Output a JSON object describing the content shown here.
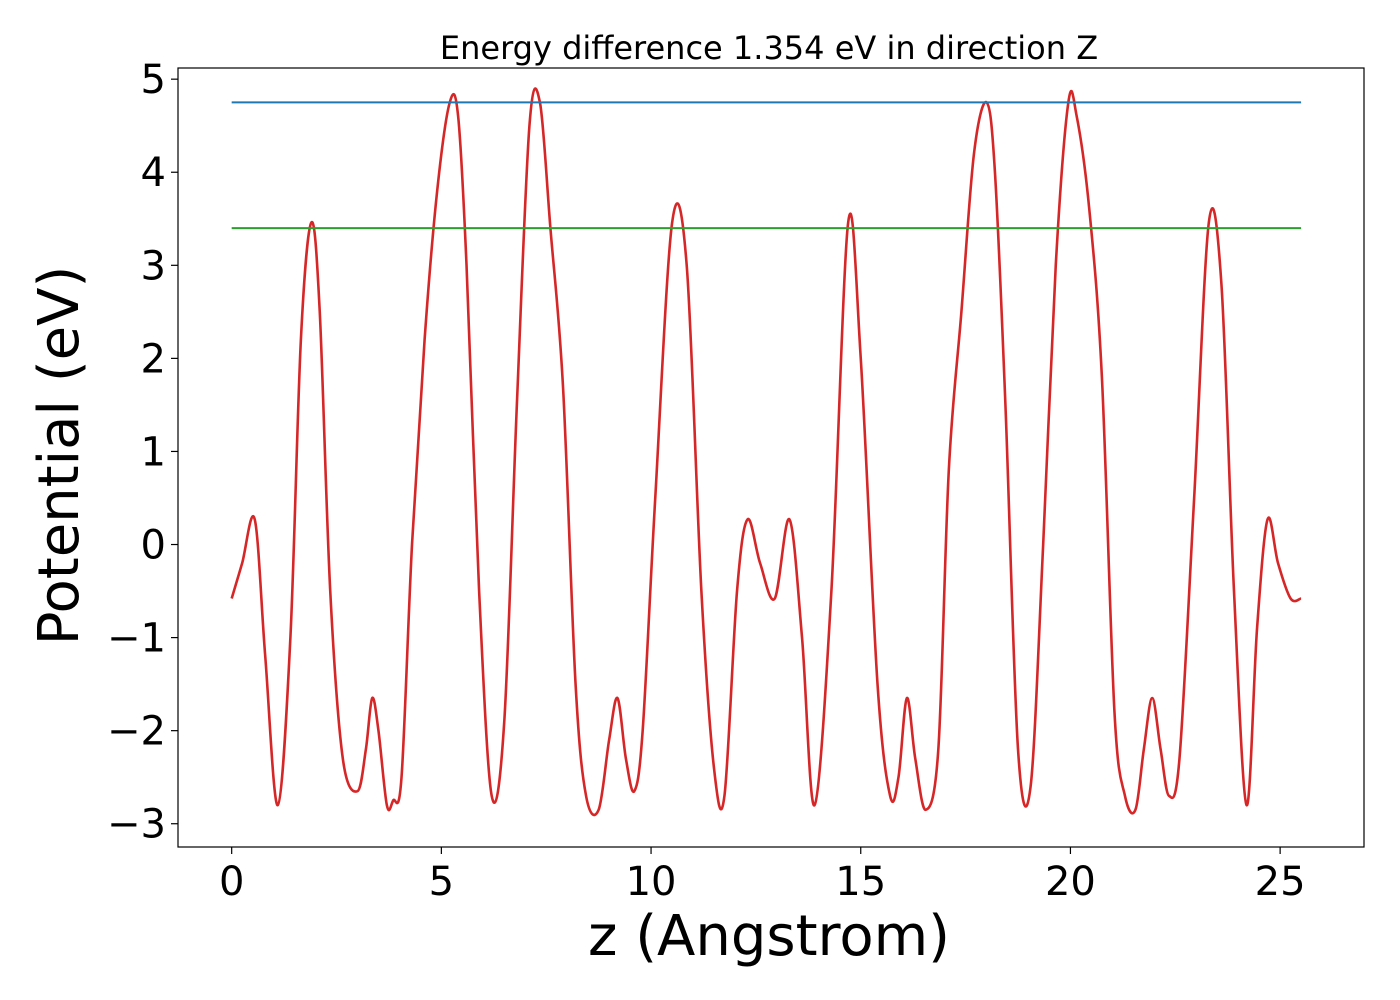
{
  "chart_data": {
    "type": "line",
    "title": "Energy difference 1.354 eV in direction Z",
    "xlabel": "z (Angstrom)",
    "ylabel": "Potential (eV)",
    "xlim": [
      -1.28,
      27.0
    ],
    "ylim": [
      -3.25,
      5.12
    ],
    "x_ticks": [
      0,
      5,
      10,
      15,
      20,
      25
    ],
    "y_ticks": [
      -3,
      -2,
      -1,
      0,
      1,
      2,
      3,
      4,
      5
    ],
    "x_tick_labels": [
      "0",
      "5",
      "10",
      "15",
      "20",
      "25"
    ],
    "y_tick_labels": [
      "−3",
      "−2",
      "−1",
      "0",
      "1",
      "2",
      "3",
      "4",
      "5"
    ],
    "grid": false,
    "legend": "none",
    "series": [
      {
        "color": "#d62728",
        "x": [
          0.0,
          0.25,
          0.55,
          0.8,
          1.1,
          1.4,
          1.65,
          1.9,
          2.1,
          2.35,
          2.65,
          3.0,
          3.2,
          3.35,
          3.5,
          3.7,
          3.85,
          4.05,
          4.3,
          4.6,
          4.9,
          5.2,
          5.4,
          5.6,
          5.9,
          6.2,
          6.5,
          6.8,
          7.1,
          7.35,
          7.6,
          7.9,
          8.2,
          8.45,
          8.75,
          9.0,
          9.2,
          9.4,
          9.6,
          9.8,
          10.1,
          10.5,
          10.85,
          11.2,
          11.5,
          11.75,
          12.05,
          12.3,
          12.6,
          12.95,
          13.3,
          13.6,
          13.9,
          14.3,
          14.7,
          15.0,
          15.4,
          15.7,
          15.9,
          16.1,
          16.3,
          16.55,
          16.85,
          17.1,
          17.4,
          17.7,
          18.0,
          18.2,
          18.45,
          18.75,
          19.05,
          19.35,
          19.65,
          19.95,
          20.15,
          20.45,
          20.75,
          21.05,
          21.3,
          21.55,
          21.75,
          21.95,
          22.15,
          22.35,
          22.6,
          22.95,
          23.3,
          23.6,
          23.9,
          24.2,
          24.45,
          24.7,
          24.95,
          25.25,
          25.5
        ],
        "y": [
          -0.58,
          -0.2,
          0.27,
          -1.2,
          -2.8,
          -1.0,
          2.2,
          3.46,
          2.5,
          -0.5,
          -2.3,
          -2.65,
          -2.2,
          -1.65,
          -2.0,
          -2.8,
          -2.75,
          -2.5,
          0.0,
          2.2,
          3.8,
          4.75,
          4.6,
          3.0,
          -0.5,
          -2.7,
          -1.9,
          1.5,
          4.5,
          4.75,
          3.4,
          1.7,
          -1.5,
          -2.7,
          -2.85,
          -2.1,
          -1.65,
          -2.3,
          -2.65,
          -2.0,
          0.5,
          3.45,
          3.0,
          -0.5,
          -2.4,
          -2.7,
          -0.5,
          0.27,
          -0.2,
          -0.58,
          0.27,
          -1.0,
          -2.8,
          -0.5,
          3.46,
          2.0,
          -1.5,
          -2.7,
          -2.5,
          -1.65,
          -2.3,
          -2.85,
          -2.2,
          0.8,
          2.5,
          4.2,
          4.75,
          4.0,
          1.5,
          -2.2,
          -2.6,
          0.0,
          3.0,
          4.75,
          4.6,
          3.6,
          1.8,
          -1.8,
          -2.7,
          -2.85,
          -2.2,
          -1.65,
          -2.2,
          -2.7,
          -2.3,
          0.5,
          3.46,
          2.8,
          -0.5,
          -2.8,
          -0.9,
          0.27,
          -0.2,
          -0.58,
          -0.58
        ]
      },
      {
        "color": "#1f77b4",
        "x": [
          0.0,
          25.5
        ],
        "y": [
          4.75,
          4.75
        ]
      },
      {
        "color": "#2ca02c",
        "x": [
          0.0,
          25.5
        ],
        "y": [
          3.4,
          3.4
        ]
      }
    ]
  }
}
